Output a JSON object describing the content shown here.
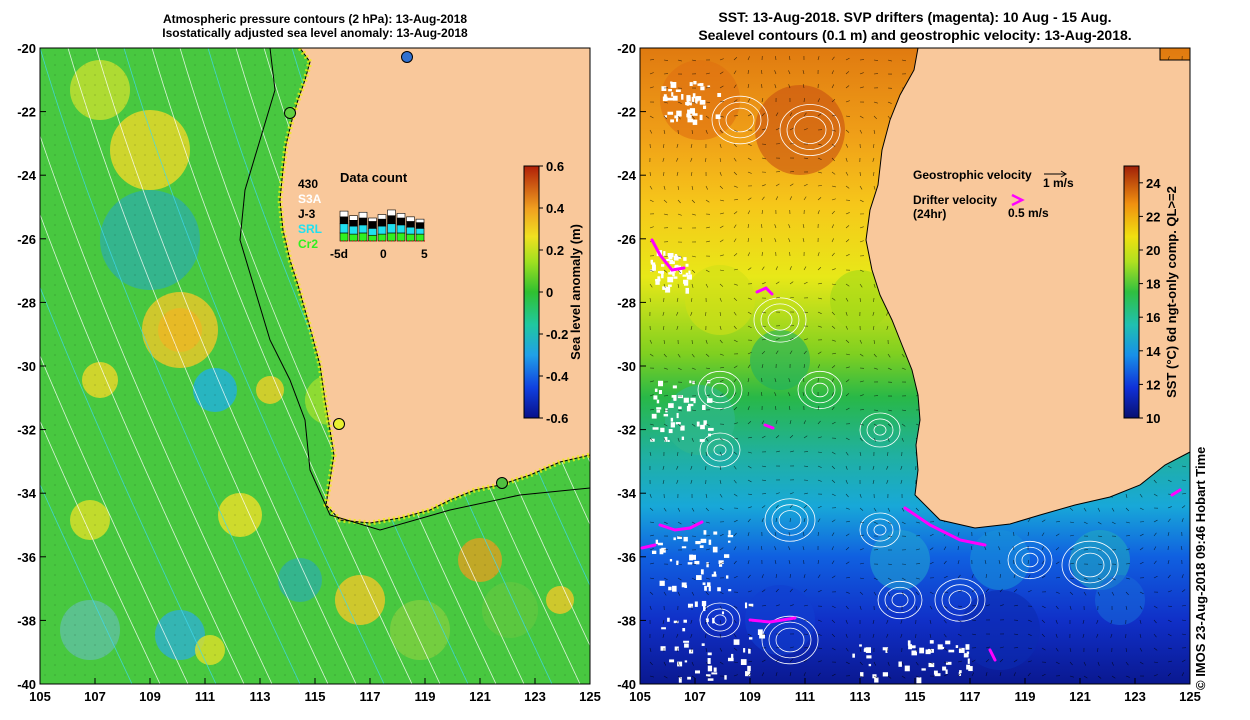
{
  "left_panel": {
    "title_line1": "Atmospheric pressure contours (2 hPa): 13-Aug-2018",
    "title_line2": "Isostatically adjusted sea level anomaly: 13-Aug-2018",
    "lat_labels": [
      "-20",
      "-22",
      "-24",
      "-26",
      "-28",
      "-30",
      "-32",
      "-34",
      "-36",
      "-38",
      "-40"
    ],
    "lon_labels": [
      "105",
      "107",
      "109",
      "111",
      "113",
      "115",
      "117",
      "119",
      "121",
      "123",
      "125"
    ],
    "colorbar": {
      "label": "Sea level anomaly (m)",
      "ticks": [
        "0.6",
        "0.4",
        "0.2",
        "0",
        "-0.2",
        "-0.4",
        "-0.6"
      ],
      "range": [
        -0.6,
        0.6
      ]
    },
    "data_count": {
      "title": "Data count",
      "total": "430",
      "missions": [
        {
          "name": "S3A",
          "color": "#ffffff"
        },
        {
          "name": "J-3",
          "color": "#000000"
        },
        {
          "name": "SRL",
          "color": "#20e0f0"
        },
        {
          "name": "Cr2",
          "color": "#30f020"
        }
      ],
      "axis_labels": [
        "-5d",
        "0",
        "5"
      ]
    },
    "colors": {
      "land": "#f9c89b",
      "coast": "#000000",
      "pressure_contour": "#ffffff"
    }
  },
  "right_panel": {
    "title_line1": "SST: 13-Aug-2018. SVP drifters (magenta): 10 Aug - 15 Aug.",
    "title_line2": "Sealevel contours (0.1 m) and geostrophic velocity: 13-Aug-2018.",
    "lat_labels": [
      "-20",
      "-22",
      "-24",
      "-26",
      "-28",
      "-30",
      "-32",
      "-34",
      "-36",
      "-38",
      "-40"
    ],
    "lon_labels": [
      "105",
      "107",
      "109",
      "111",
      "113",
      "115",
      "117",
      "119",
      "121",
      "123",
      "125"
    ],
    "colorbar": {
      "label": "SST (°C) 6d ngt-only comp. QL>=2",
      "ticks": [
        "24",
        "22",
        "20",
        "18",
        "16",
        "14",
        "12",
        "10"
      ],
      "range": [
        10,
        25
      ]
    },
    "legend": {
      "geostrophic_label": "Geostrophic velocity",
      "geostrophic_scale": "1 m/s",
      "drifter_label": "Drifter velocity",
      "drifter_sub": "(24hr)",
      "drifter_scale": "0.5 m/s"
    },
    "colors": {
      "land": "#f9c89b",
      "drifter": "#ff00ff"
    }
  },
  "credit": "© IMOS 23-Aug-2018 09:46 Hobart Time"
}
